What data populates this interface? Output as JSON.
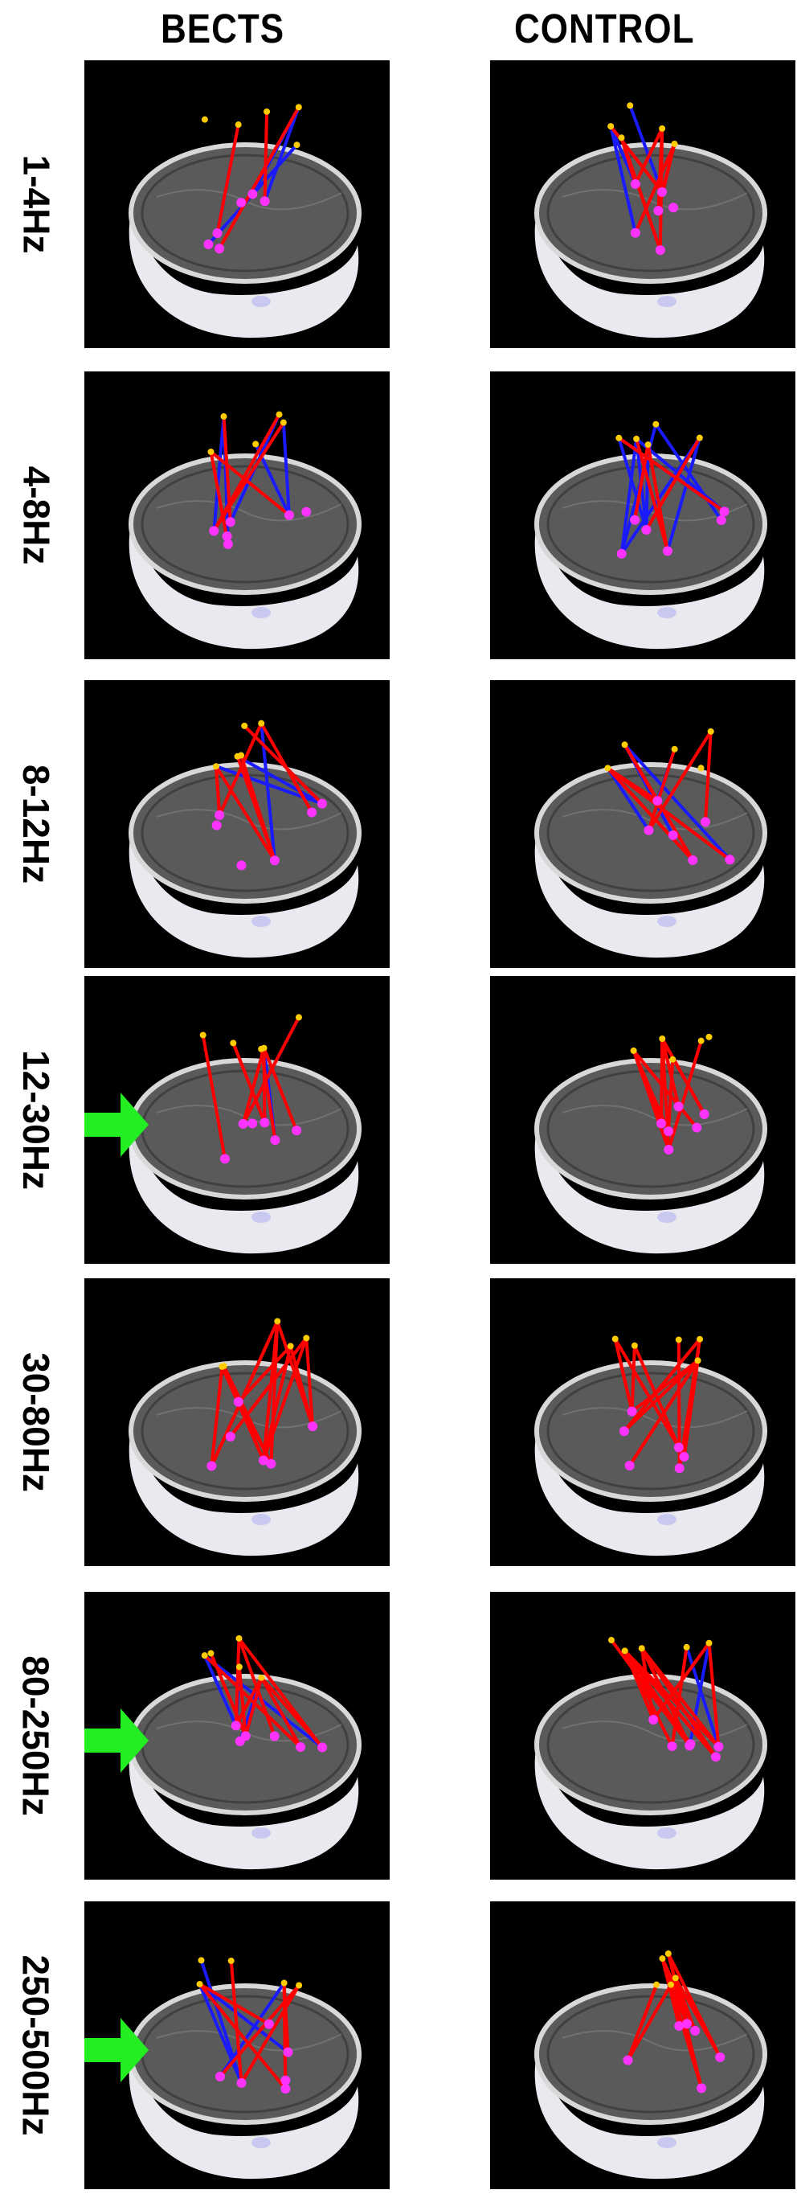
{
  "columns": [
    "BECTS",
    "CONTROL"
  ],
  "rows": [
    {
      "band": "1-4Hz",
      "arrow": false
    },
    {
      "band": "4-8Hz",
      "arrow": false
    },
    {
      "band": "8-12Hz",
      "arrow": false
    },
    {
      "band": "12-30Hz",
      "arrow": true
    },
    {
      "band": "30-80Hz",
      "arrow": false
    },
    {
      "band": "80-250Hz",
      "arrow": true
    },
    {
      "band": "250-500Hz",
      "arrow": true
    }
  ],
  "colors": {
    "background": "#000000",
    "connection_positive": "#ff0000",
    "connection_negative": "#1a1aff",
    "electrode_source": "#ffcc00",
    "electrode_target": "#ff33ff",
    "arrow": "#22ee22"
  }
}
